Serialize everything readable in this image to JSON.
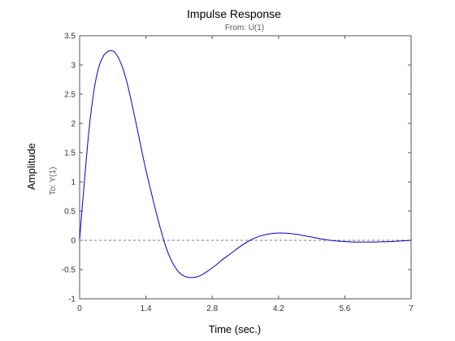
{
  "chart_data": {
    "type": "line",
    "title": "Impulse Response",
    "subtitle": "From: U(1)",
    "xlabel": "Time (sec.)",
    "ylabel": "Amplitude",
    "output_label": "To: Y(1)",
    "xlim": [
      0,
      7
    ],
    "ylim": [
      -1,
      3.5
    ],
    "xticks": [
      0,
      1.4,
      2.8,
      4.2,
      5.6,
      7
    ],
    "xtick_labels": [
      "0",
      "1.4",
      "2.8",
      "4.2",
      "5.6",
      "7"
    ],
    "yticks": [
      -1,
      -0.5,
      0,
      0.5,
      1,
      1.5,
      2,
      2.5,
      3,
      3.5
    ],
    "ytick_labels": [
      "-1",
      "-0.5",
      "0",
      "0.5",
      "1",
      "1.5",
      "2",
      "2.5",
      "3",
      "3.5"
    ],
    "grid": false,
    "reference_line": {
      "y": 0,
      "style": "dashed"
    },
    "series": [
      {
        "color": "#0000cc",
        "x": [
          0,
          0.1,
          0.2,
          0.3,
          0.4,
          0.5,
          0.6,
          0.7,
          0.8,
          0.9,
          1.0,
          1.1,
          1.2,
          1.3,
          1.4,
          1.5,
          1.6,
          1.7,
          1.8,
          1.9,
          2.0,
          2.1,
          2.2,
          2.3,
          2.4,
          2.5,
          2.6,
          2.7,
          2.8,
          2.9,
          3.0,
          3.2,
          3.4,
          3.6,
          3.8,
          4.0,
          4.2,
          4.4,
          4.6,
          4.8,
          5.0,
          5.2,
          5.4,
          5.6,
          5.8,
          6.0,
          6.2,
          6.4,
          6.6,
          6.8,
          7.0
        ],
        "y": [
          0.02,
          1.0,
          1.9,
          2.55,
          2.95,
          3.15,
          3.23,
          3.24,
          3.15,
          2.97,
          2.7,
          2.35,
          1.97,
          1.58,
          1.2,
          0.86,
          0.53,
          0.22,
          -0.06,
          -0.28,
          -0.44,
          -0.55,
          -0.61,
          -0.635,
          -0.635,
          -0.62,
          -0.58,
          -0.53,
          -0.47,
          -0.41,
          -0.34,
          -0.22,
          -0.1,
          0.0,
          0.07,
          0.11,
          0.125,
          0.12,
          0.1,
          0.07,
          0.04,
          0.01,
          -0.01,
          -0.02,
          -0.03,
          -0.03,
          -0.03,
          -0.025,
          -0.02,
          -0.01,
          0.0
        ]
      }
    ]
  },
  "colors": {
    "background": "#ffffff",
    "axes": "#555555",
    "reference": "#777777",
    "line": "#0000cc"
  }
}
